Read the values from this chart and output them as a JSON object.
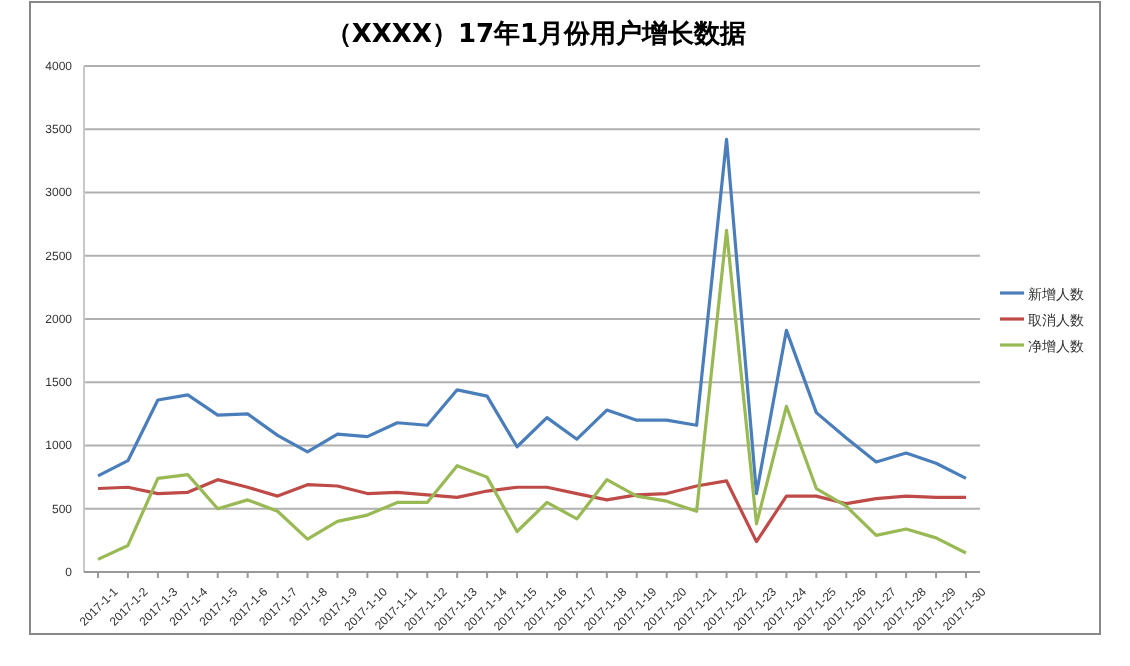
{
  "chart_data": {
    "type": "line",
    "title": "（XXXX）17年1月份用户增长数据",
    "categories": [
      "2017-1-1",
      "2017-1-2",
      "2017-1-3",
      "2017-1-4",
      "2017-1-5",
      "2017-1-6",
      "2017-1-7",
      "2017-1-8",
      "2017-1-9",
      "2017-1-10",
      "2017-1-11",
      "2017-1-12",
      "2017-1-13",
      "2017-1-14",
      "2017-1-15",
      "2017-1-16",
      "2017-1-17",
      "2017-1-18",
      "2017-1-19",
      "2017-1-20",
      "2017-1-21",
      "2017-1-22",
      "2017-1-23",
      "2017-1-24",
      "2017-1-25",
      "2017-1-26",
      "2017-1-27",
      "2017-1-28",
      "2017-1-29",
      "2017-1-30"
    ],
    "series": [
      {
        "name": "新增人数",
        "color": "#4a7ebb",
        "values": [
          760,
          880,
          1360,
          1400,
          1240,
          1250,
          1080,
          950,
          1090,
          1070,
          1180,
          1160,
          1440,
          1390,
          990,
          1220,
          1050,
          1280,
          1200,
          1200,
          1160,
          3420,
          620,
          1910,
          1260,
          1060,
          870,
          940,
          860,
          740
        ]
      },
      {
        "name": "取消人数",
        "color": "#be4b48",
        "values": [
          660,
          670,
          620,
          630,
          730,
          670,
          600,
          690,
          680,
          620,
          630,
          610,
          590,
          640,
          670,
          670,
          620,
          570,
          610,
          620,
          680,
          720,
          240,
          600,
          600,
          540,
          580,
          600,
          590,
          590
        ]
      },
      {
        "name": "净增人数",
        "color": "#98b954",
        "values": [
          100,
          210,
          740,
          770,
          500,
          570,
          480,
          260,
          400,
          450,
          550,
          550,
          840,
          750,
          320,
          550,
          420,
          730,
          600,
          560,
          480,
          2700,
          380,
          1310,
          660,
          520,
          290,
          340,
          270,
          150
        ]
      }
    ],
    "ylim": [
      0,
      4000
    ],
    "yticks": [
      0,
      500,
      1000,
      1500,
      2000,
      2500,
      3000,
      3500,
      4000
    ],
    "grid": "y",
    "legend": "right",
    "marker": "none",
    "line_style": "solid"
  }
}
